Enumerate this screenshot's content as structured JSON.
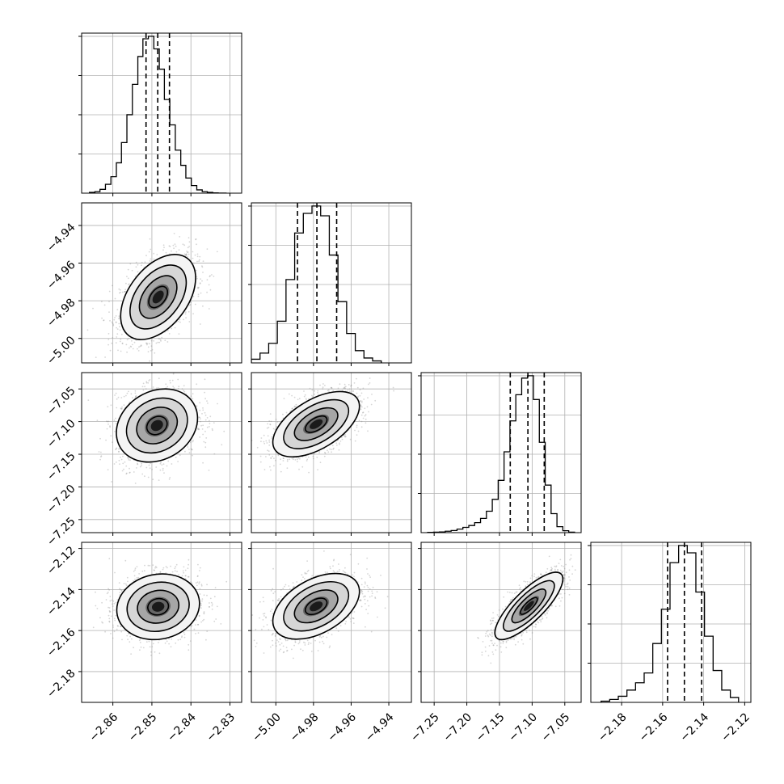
{
  "chart_data": {
    "type": "corner",
    "parameters": [
      {
        "range": [
          -2.868,
          -2.827
        ],
        "ticks": [
          -2.86,
          -2.85,
          -2.84,
          -2.83
        ],
        "tick_labels": [
          "−2.86",
          "−2.85",
          "−2.84",
          "−2.83"
        ],
        "quantiles": [
          -2.8515,
          -2.8485,
          -2.8455
        ],
        "hist": {
          "edges": [
            -2.866,
            -2.8646,
            -2.8633,
            -2.8619,
            -2.8605,
            -2.8591,
            -2.8578,
            -2.8564,
            -2.855,
            -2.8536,
            -2.8523,
            -2.8509,
            -2.8495,
            -2.8481,
            -2.8468,
            -2.8454,
            -2.844,
            -2.8426,
            -2.8413,
            -2.8399,
            -2.8385,
            -2.8371,
            -2.8358,
            -2.8344,
            -2.833,
            -2.831
          ],
          "counts": [
            0.003,
            0.006,
            0.015,
            0.035,
            0.065,
            0.12,
            0.2,
            0.31,
            0.43,
            0.54,
            0.61,
            0.62,
            0.57,
            0.49,
            0.37,
            0.27,
            0.17,
            0.11,
            0.06,
            0.03,
            0.013,
            0.006,
            0.003,
            0.001,
            0.0005
          ]
        }
      },
      {
        "range": [
          -5.013,
          -4.928
        ],
        "ticks": [
          -5.0,
          -4.98,
          -4.96,
          -4.94
        ],
        "tick_labels": [
          "−5.00",
          "−4.98",
          "−4.96",
          "−4.94"
        ],
        "quantiles": [
          -4.9885,
          -4.9782,
          -4.9677
        ],
        "hist": {
          "edges": [
            -5.013,
            -5.0084,
            -5.0038,
            -4.9992,
            -4.9946,
            -4.99,
            -4.9854,
            -4.9808,
            -4.9762,
            -4.9716,
            -4.967,
            -4.9624,
            -4.9578,
            -4.9532,
            -4.9486,
            -4.944
          ],
          "counts": [
            0.015,
            0.04,
            0.08,
            0.17,
            0.34,
            0.53,
            0.61,
            0.64,
            0.6,
            0.44,
            0.25,
            0.12,
            0.05,
            0.02,
            0.008
          ]
        }
      },
      {
        "range": [
          -7.27,
          -7.025
        ],
        "ticks": [
          -7.25,
          -7.2,
          -7.15,
          -7.1,
          -7.05
        ],
        "tick_labels": [
          "−7.25",
          "−7.20",
          "−7.15",
          "−7.10",
          "−7.05"
        ],
        "quantiles": [
          -7.1335,
          -7.1065,
          -7.0815
        ],
        "hist": {
          "edges": [
            -7.26,
            -7.251,
            -7.242,
            -7.233,
            -7.224,
            -7.215,
            -7.206,
            -7.197,
            -7.188,
            -7.179,
            -7.17,
            -7.161,
            -7.152,
            -7.143,
            -7.134,
            -7.125,
            -7.116,
            -7.107,
            -7.098,
            -7.089,
            -7.08,
            -7.071,
            -7.062,
            -7.053,
            -7.044,
            -7.035
          ],
          "counts": [
            0.001,
            0.002,
            0.003,
            0.006,
            0.009,
            0.015,
            0.022,
            0.03,
            0.042,
            0.06,
            0.09,
            0.14,
            0.22,
            0.34,
            0.47,
            0.58,
            0.65,
            0.66,
            0.56,
            0.38,
            0.2,
            0.08,
            0.025,
            0.008,
            0.002
          ]
        }
      },
      {
        "range": [
          -2.195,
          -2.117
        ],
        "ticks": [
          -2.18,
          -2.16,
          -2.14,
          -2.12
        ],
        "tick_labels": [
          "−2.18",
          "−2.16",
          "−2.14",
          "−2.12"
        ],
        "quantiles": [
          -2.1576,
          -2.1494,
          -2.141
        ],
        "hist": {
          "edges": [
            -2.19,
            -2.1858,
            -2.1816,
            -2.1774,
            -2.1732,
            -2.169,
            -2.1648,
            -2.1606,
            -2.1564,
            -2.1522,
            -2.148,
            -2.1438,
            -2.1396,
            -2.1354,
            -2.1312,
            -2.127,
            -2.123
          ],
          "counts": [
            0.005,
            0.012,
            0.025,
            0.05,
            0.08,
            0.12,
            0.24,
            0.38,
            0.57,
            0.64,
            0.61,
            0.45,
            0.27,
            0.13,
            0.05,
            0.02
          ]
        }
      }
    ],
    "pairs": [
      {
        "x_param": 0,
        "y_param": 1,
        "center": [
          -2.8484,
          -4.978
        ],
        "sigma": [
          0.0048,
          0.0113
        ],
        "rho": 0.45
      },
      {
        "x_param": 0,
        "y_param": 2,
        "center": [
          -2.8487,
          -7.106
        ],
        "sigma": [
          0.0052,
          0.028
        ],
        "rho": 0.2
      },
      {
        "x_param": 1,
        "y_param": 2,
        "center": [
          -4.9786,
          -7.104
        ],
        "sigma": [
          0.0115,
          0.025
        ],
        "rho": 0.55
      },
      {
        "x_param": 0,
        "y_param": 3,
        "center": [
          -2.8484,
          -2.1484
        ],
        "sigma": [
          0.0053,
          0.008
        ],
        "rho": 0.1
      },
      {
        "x_param": 1,
        "y_param": 3,
        "center": [
          -4.9786,
          -2.1482
        ],
        "sigma": [
          0.0115,
          0.008
        ],
        "rho": 0.45
      },
      {
        "x_param": 2,
        "y_param": 3,
        "center": [
          -7.105,
          -2.148
        ],
        "sigma": [
          0.026,
          0.0082
        ],
        "rho": 0.8
      }
    ],
    "contour_levels_sigma": [
      0.5,
      1.0,
      1.5,
      2.0
    ],
    "grid": true,
    "colors": {
      "line": "#000000",
      "grid": "#b0b0b0",
      "points": "#8a8a8a",
      "density": "#000000"
    }
  }
}
